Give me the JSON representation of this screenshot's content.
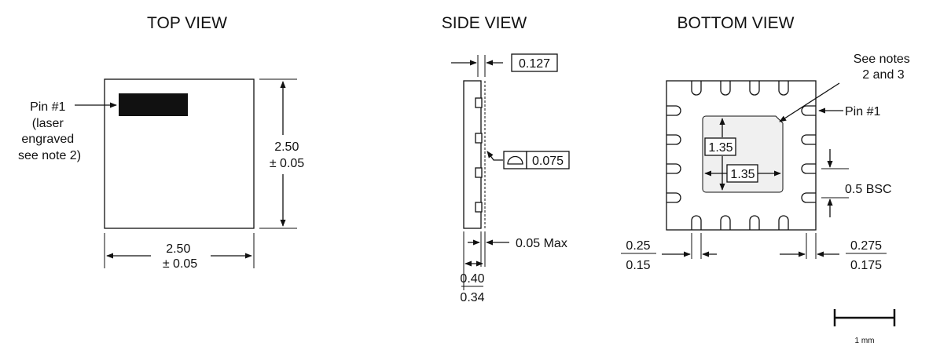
{
  "views": {
    "top": {
      "title": "TOP VIEW",
      "pin1_label": [
        "Pin #1",
        "(laser",
        "engraved",
        "see note 2)"
      ],
      "height_dim": [
        "2.50",
        "± 0.05"
      ],
      "width_dim": [
        "2.50",
        "± 0.05"
      ]
    },
    "side": {
      "title": "SIDE VIEW",
      "top_dim": "0.127",
      "flatness_symbol": "⌓",
      "flatness_value": "0.075",
      "standoff": "0.05 Max",
      "thickness_max": "0.40",
      "thickness_min": "0.34"
    },
    "bottom": {
      "title": "BOTTOM VIEW",
      "notes": [
        "See notes",
        "2 and 3"
      ],
      "pin1": "Pin #1",
      "pad_h": "1.35",
      "pad_w": "1.35",
      "pitch": "0.5 BSC",
      "lead_width_max": "0.25",
      "lead_width_min": "0.15",
      "lead_len_max": "0.275",
      "lead_len_min": "0.175"
    }
  },
  "scale_bar": "1 mm"
}
